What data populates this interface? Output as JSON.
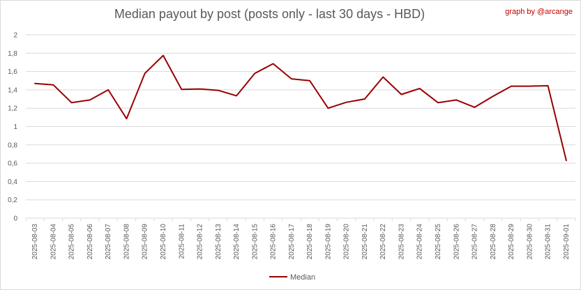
{
  "chart_data": {
    "type": "line",
    "title": "Median payout by post (posts only - last 30 days - HBD)",
    "credit": "graph by @arcange",
    "xlabel": "",
    "ylabel": "",
    "ylim": [
      0,
      2
    ],
    "ytick_step": 0.2,
    "grid": true,
    "legend_position": "bottom",
    "categories": [
      "2025-08-03",
      "2025-08-04",
      "2025-08-05",
      "2025-08-06",
      "2025-08-07",
      "2025-08-08",
      "2025-08-09",
      "2025-08-10",
      "2025-08-11",
      "2025-08-12",
      "2025-08-13",
      "2025-08-14",
      "2025-08-15",
      "2025-08-16",
      "2025-08-17",
      "2025-08-18",
      "2025-08-19",
      "2025-08-20",
      "2025-08-21",
      "2025-08-22",
      "2025-08-23",
      "2025-08-24",
      "2025-08-25",
      "2025-08-26",
      "2025-08-27",
      "2025-08-28",
      "2025-08-29",
      "2025-08-30",
      "2025-08-31",
      "2025-09-01"
    ],
    "series": [
      {
        "name": "Median",
        "color": "#990000",
        "values": [
          1.47,
          1.455,
          1.26,
          1.29,
          1.4,
          1.085,
          1.58,
          1.775,
          1.405,
          1.41,
          1.395,
          1.335,
          1.58,
          1.685,
          1.52,
          1.5,
          1.2,
          1.265,
          1.3,
          1.54,
          1.35,
          1.415,
          1.26,
          1.29,
          1.21,
          1.33,
          1.44,
          1.44,
          1.445,
          0.63
        ]
      }
    ],
    "yticks": [
      "0",
      "0,2",
      "0,4",
      "0,6",
      "0,8",
      "1",
      "1,2",
      "1,4",
      "1,6",
      "1,8",
      "2"
    ]
  },
  "colors": {
    "grid": "#d9d9d9",
    "axis_text": "#595959",
    "credit": "#c00000",
    "series": "#990000"
  }
}
